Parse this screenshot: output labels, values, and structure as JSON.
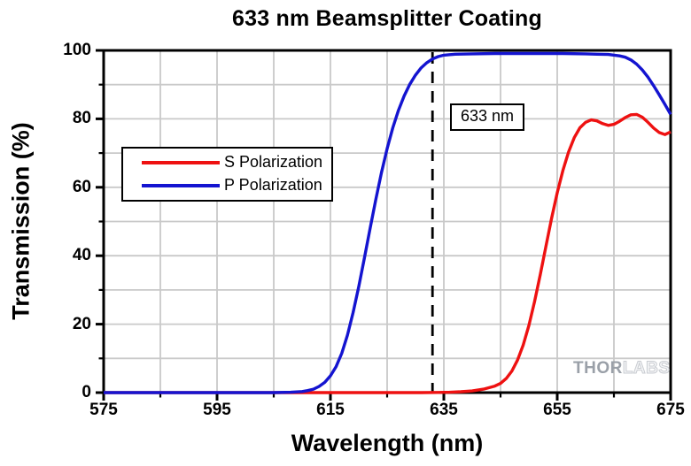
{
  "watermark": {
    "part1": "THOR",
    "part2": "LABS"
  },
  "chart_data": {
    "type": "line",
    "title": "633 nm Beamsplitter Coating",
    "xlabel": "Wavelength (nm)",
    "ylabel": "Transmission (%)",
    "xlim": [
      575,
      675
    ],
    "ylim": [
      0,
      100
    ],
    "xticks_major": [
      575,
      595,
      615,
      635,
      655,
      675
    ],
    "xticks_minor": [
      585,
      605,
      625,
      645,
      665
    ],
    "yticks_major": [
      0,
      20,
      40,
      60,
      80,
      100
    ],
    "yticks_minor": [
      10,
      30,
      50,
      70,
      90
    ],
    "grid": {
      "visible": true,
      "x_step": 10,
      "y_step": 10,
      "color": "#c9c9c9"
    },
    "axis_color": "#000000",
    "legend_position": "upper-left-inside",
    "annotation": {
      "text": "633 nm",
      "x": 633,
      "line_style": "dashed",
      "line_color": "#000000"
    },
    "series": [
      {
        "name": "S Polarization",
        "color": "#ee1111",
        "points": [
          [
            575,
            0
          ],
          [
            585,
            0
          ],
          [
            595,
            0
          ],
          [
            605,
            0
          ],
          [
            615,
            0
          ],
          [
            625,
            0
          ],
          [
            631,
            0
          ],
          [
            634,
            0.05
          ],
          [
            636,
            0.1
          ],
          [
            638,
            0.25
          ],
          [
            640,
            0.5
          ],
          [
            642,
            1
          ],
          [
            644,
            1.9
          ],
          [
            645,
            2.7
          ],
          [
            646,
            4.1
          ],
          [
            647,
            6.3
          ],
          [
            648,
            9.5
          ],
          [
            649,
            13.9
          ],
          [
            650,
            19.6
          ],
          [
            651,
            26.6
          ],
          [
            652,
            34.4
          ],
          [
            653,
            42.7
          ],
          [
            654,
            50.9
          ],
          [
            655,
            58.4
          ],
          [
            656,
            64.9
          ],
          [
            657,
            70.3
          ],
          [
            658,
            74.5
          ],
          [
            659,
            77.4
          ],
          [
            660,
            79
          ],
          [
            661,
            79.7
          ],
          [
            662,
            79.4
          ],
          [
            663,
            78.6
          ],
          [
            664,
            78.1
          ],
          [
            665,
            78.4
          ],
          [
            666,
            79.3
          ],
          [
            667,
            80.4
          ],
          [
            668,
            81.2
          ],
          [
            669,
            81.3
          ],
          [
            670,
            80.5
          ],
          [
            671,
            79
          ],
          [
            672,
            77.3
          ],
          [
            673,
            76
          ],
          [
            674,
            75.4
          ],
          [
            675,
            76.2
          ]
        ]
      },
      {
        "name": "P Polarization",
        "color": "#1414d0",
        "points": [
          [
            575,
            0
          ],
          [
            585,
            0
          ],
          [
            595,
            0
          ],
          [
            600,
            0
          ],
          [
            605,
            0
          ],
          [
            608,
            0.1
          ],
          [
            610,
            0.3
          ],
          [
            611,
            0.6
          ],
          [
            612,
            1
          ],
          [
            613,
            1.8
          ],
          [
            614,
            3
          ],
          [
            615,
            4.9
          ],
          [
            616,
            7.6
          ],
          [
            617,
            11.5
          ],
          [
            618,
            16.8
          ],
          [
            619,
            23.4
          ],
          [
            620,
            31
          ],
          [
            621,
            39.4
          ],
          [
            622,
            48
          ],
          [
            623,
            56.4
          ],
          [
            624,
            64.3
          ],
          [
            625,
            71.3
          ],
          [
            626,
            77.4
          ],
          [
            627,
            82.5
          ],
          [
            628,
            86.7
          ],
          [
            629,
            90.1
          ],
          [
            630,
            92.8
          ],
          [
            631,
            94.9
          ],
          [
            632,
            96.4
          ],
          [
            633,
            97.5
          ],
          [
            634,
            98.2
          ],
          [
            635,
            98.6
          ],
          [
            637,
            98.9
          ],
          [
            640,
            99
          ],
          [
            644,
            99.1
          ],
          [
            648,
            99.1
          ],
          [
            652,
            99.1
          ],
          [
            656,
            99.1
          ],
          [
            660,
            99
          ],
          [
            662,
            98.9
          ],
          [
            664,
            98.8
          ],
          [
            666,
            98.4
          ],
          [
            667,
            98
          ],
          [
            668,
            97.2
          ],
          [
            669,
            96
          ],
          [
            670,
            94.3
          ],
          [
            671,
            92.2
          ],
          [
            672,
            89.7
          ],
          [
            673,
            87
          ],
          [
            674,
            84.2
          ],
          [
            675,
            81.3
          ]
        ]
      }
    ]
  }
}
